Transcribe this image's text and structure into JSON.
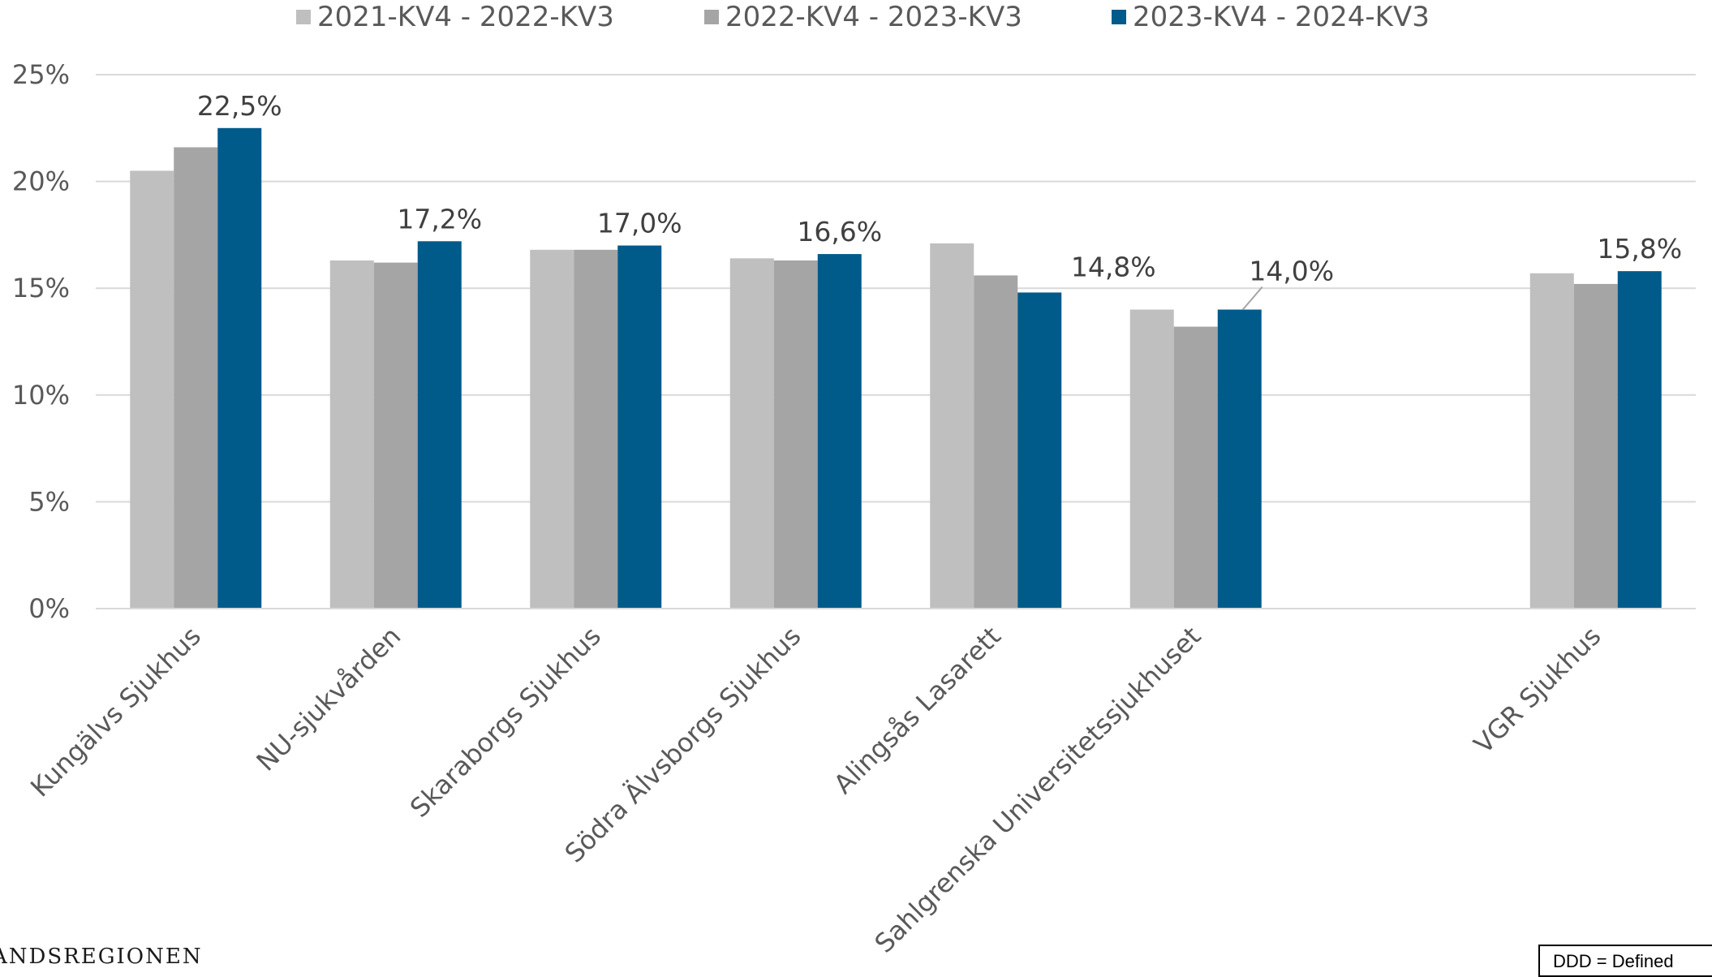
{
  "chart_data": {
    "type": "bar",
    "categories": [
      "Kungälvs Sjukhus",
      "NU-sjukvården",
      "Skaraborgs Sjukhus",
      "Södra Älvsborgs Sjukhus",
      "Alingsås Lasarett",
      "Sahlgrenska Universitetssjukhuset",
      "",
      "VGR Sjukhus"
    ],
    "series": [
      {
        "name": "2021-KV4 - 2022-KV3",
        "color": "#bfbfbf",
        "values": [
          20.5,
          16.3,
          16.8,
          16.4,
          17.1,
          14.0,
          null,
          15.7
        ]
      },
      {
        "name": "2022-KV4 - 2023-KV3",
        "color": "#a5a5a5",
        "values": [
          21.6,
          16.2,
          16.8,
          16.3,
          15.6,
          13.2,
          null,
          15.2
        ]
      },
      {
        "name": "2023-KV4 - 2024-KV3",
        "color": "#005a8a",
        "values": [
          22.5,
          17.2,
          17.0,
          16.6,
          14.8,
          14.0,
          null,
          15.8
        ]
      }
    ],
    "data_labels": [
      "22,5%",
      "17,2%",
      "17,0%",
      "16,6%",
      "14,8%",
      "14,0%",
      null,
      "15,8%"
    ],
    "yticks": [
      "0%",
      "5%",
      "10%",
      "15%",
      "20%",
      "25%"
    ],
    "ylim": [
      0,
      25
    ],
    "grid": true,
    "legend_position": "top"
  },
  "footer": {
    "logo_text": "ANDSREGIONEN",
    "note": "DDD = Defined"
  }
}
